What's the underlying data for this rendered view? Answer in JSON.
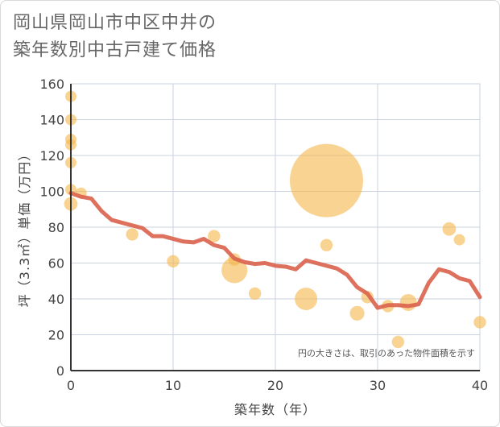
{
  "title_line1": "岡山県岡山市中区中井の",
  "title_line2": "築年数別中古戸建て価格",
  "chart_data": {
    "type": "scatter",
    "title": "岡山県岡山市中区中井の築年数別中古戸建て価格",
    "xlabel": "築年数（年）",
    "ylabel": "坪（3.3㎡）単価（万円）",
    "xlim": [
      0,
      40
    ],
    "ylim": [
      0,
      160
    ],
    "xticks": [
      0,
      10,
      20,
      30,
      40
    ],
    "yticks": [
      0,
      20,
      40,
      60,
      80,
      100,
      120,
      140,
      160
    ],
    "grid": true,
    "note": "円の大きさは、取引のあった物件面積を示す",
    "colors": {
      "bubble": "#f5b54a",
      "line": "#d9624d",
      "grid": "#c8d3df",
      "axis": "#333333"
    },
    "points": [
      {
        "x": 0,
        "y": 153,
        "size": 1
      },
      {
        "x": 0,
        "y": 140,
        "size": 1
      },
      {
        "x": 0,
        "y": 129,
        "size": 1
      },
      {
        "x": 0,
        "y": 126,
        "size": 1
      },
      {
        "x": 0,
        "y": 116,
        "size": 1
      },
      {
        "x": 0,
        "y": 101,
        "size": 1
      },
      {
        "x": 0,
        "y": 93,
        "size": 1.2
      },
      {
        "x": 1,
        "y": 99,
        "size": 1
      },
      {
        "x": 6,
        "y": 76,
        "size": 1.1
      },
      {
        "x": 10,
        "y": 61,
        "size": 1.1
      },
      {
        "x": 14,
        "y": 75,
        "size": 1.1
      },
      {
        "x": 16,
        "y": 62,
        "size": 1.1
      },
      {
        "x": 16,
        "y": 56,
        "size": 2.3
      },
      {
        "x": 18,
        "y": 43,
        "size": 1.1
      },
      {
        "x": 23,
        "y": 40,
        "size": 2.0
      },
      {
        "x": 25,
        "y": 106,
        "size": 6.5
      },
      {
        "x": 25,
        "y": 70,
        "size": 1.1
      },
      {
        "x": 28,
        "y": 32,
        "size": 1.3
      },
      {
        "x": 29,
        "y": 41,
        "size": 1.1
      },
      {
        "x": 31,
        "y": 36,
        "size": 1.1
      },
      {
        "x": 32,
        "y": 16,
        "size": 1.1
      },
      {
        "x": 33,
        "y": 38,
        "size": 1.5
      },
      {
        "x": 37,
        "y": 79,
        "size": 1.2
      },
      {
        "x": 38,
        "y": 73,
        "size": 1.0
      },
      {
        "x": 40,
        "y": 27,
        "size": 1.1
      }
    ],
    "trend": {
      "x": [
        0,
        1,
        2,
        3,
        4,
        5,
        6,
        7,
        8,
        9,
        10,
        11,
        12,
        13,
        14,
        15,
        16,
        17,
        18,
        19,
        20,
        21,
        22,
        23,
        24,
        25,
        26,
        27,
        28,
        29,
        30,
        31,
        32,
        33,
        34,
        35,
        36,
        37,
        38,
        39,
        40
      ],
      "y": [
        99,
        97,
        96,
        89,
        84,
        82.5,
        81,
        79.5,
        75,
        75,
        73.5,
        72,
        71.5,
        73.5,
        70,
        68.5,
        62.5,
        60.5,
        59.5,
        60,
        58.5,
        58,
        56.5,
        61.5,
        60,
        58.5,
        57,
        53.5,
        46.5,
        43,
        35,
        36.5,
        36.5,
        36,
        37,
        49,
        56.5,
        55,
        51.5,
        50,
        41
      ]
    }
  }
}
